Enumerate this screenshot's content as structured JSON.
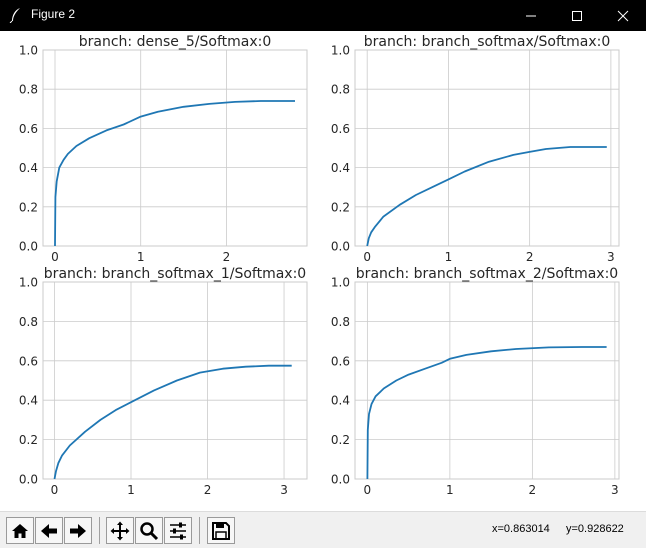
{
  "window": {
    "title": "Figure 2"
  },
  "toolbar": {
    "buttons": [
      {
        "name": "home-icon"
      },
      {
        "name": "arrow-left-icon"
      },
      {
        "name": "arrow-right-icon"
      },
      {
        "name": "pan-icon"
      },
      {
        "name": "zoom-icon"
      },
      {
        "name": "sliders-icon"
      },
      {
        "name": "save-icon"
      }
    ],
    "coord_x": "x=0.863014",
    "coord_y": "y=0.928622"
  },
  "chart_data": [
    {
      "type": "line",
      "title": "branch: dense_5/Softmax:0",
      "xlim": [
        -0.14,
        2.94
      ],
      "ylim": [
        0,
        1
      ],
      "xticks": [
        0,
        1,
        2
      ],
      "yticks": [
        0.0,
        0.2,
        0.4,
        0.6,
        0.8,
        1.0
      ],
      "grid": true,
      "color": "#1f77b4",
      "x": [
        0.0,
        0.005,
        0.02,
        0.05,
        0.1,
        0.15,
        0.25,
        0.4,
        0.6,
        0.8,
        1.0,
        1.2,
        1.5,
        1.8,
        2.1,
        2.4,
        2.8
      ],
      "y": [
        0.0,
        0.25,
        0.33,
        0.4,
        0.44,
        0.47,
        0.51,
        0.55,
        0.59,
        0.62,
        0.66,
        0.685,
        0.71,
        0.725,
        0.735,
        0.74,
        0.74
      ]
    },
    {
      "type": "line",
      "title": "branch: branch_softmax/Softmax:0",
      "xlim": [
        -0.15,
        3.1
      ],
      "ylim": [
        0,
        1
      ],
      "xticks": [
        0,
        1,
        2,
        3
      ],
      "yticks": [
        0.0,
        0.2,
        0.4,
        0.6,
        0.8,
        1.0
      ],
      "grid": true,
      "color": "#1f77b4",
      "x": [
        0.0,
        0.02,
        0.05,
        0.1,
        0.2,
        0.4,
        0.6,
        0.8,
        1.0,
        1.2,
        1.5,
        1.8,
        2.0,
        2.2,
        2.5,
        2.95
      ],
      "y": [
        0.0,
        0.04,
        0.07,
        0.1,
        0.15,
        0.21,
        0.26,
        0.3,
        0.34,
        0.38,
        0.43,
        0.465,
        0.48,
        0.495,
        0.505,
        0.505
      ]
    },
    {
      "type": "line",
      "title": "branch: branch_softmax_1/Softmax:0",
      "xlim": [
        -0.15,
        3.3
      ],
      "ylim": [
        0,
        1
      ],
      "xticks": [
        0,
        1,
        2,
        3
      ],
      "yticks": [
        0.0,
        0.2,
        0.4,
        0.6,
        0.8,
        1.0
      ],
      "grid": true,
      "color": "#1f77b4",
      "x": [
        0.0,
        0.02,
        0.05,
        0.1,
        0.2,
        0.4,
        0.6,
        0.8,
        1.0,
        1.3,
        1.6,
        1.9,
        2.2,
        2.5,
        2.8,
        3.1
      ],
      "y": [
        0.0,
        0.04,
        0.08,
        0.12,
        0.17,
        0.24,
        0.3,
        0.35,
        0.39,
        0.45,
        0.5,
        0.54,
        0.56,
        0.57,
        0.575,
        0.575
      ]
    },
    {
      "type": "line",
      "title": "branch: branch_softmax_2/Softmax:0",
      "xlim": [
        -0.15,
        3.05
      ],
      "ylim": [
        0,
        1
      ],
      "xticks": [
        0,
        1,
        2,
        3
      ],
      "yticks": [
        0.0,
        0.2,
        0.4,
        0.6,
        0.8,
        1.0
      ],
      "grid": true,
      "color": "#1f77b4",
      "x": [
        0.0,
        0.005,
        0.02,
        0.05,
        0.1,
        0.2,
        0.35,
        0.5,
        0.7,
        0.9,
        1.0,
        1.2,
        1.5,
        1.8,
        2.2,
        2.6,
        2.9
      ],
      "y": [
        0.0,
        0.25,
        0.33,
        0.38,
        0.42,
        0.46,
        0.5,
        0.53,
        0.56,
        0.59,
        0.61,
        0.63,
        0.648,
        0.66,
        0.668,
        0.67,
        0.67
      ]
    }
  ]
}
